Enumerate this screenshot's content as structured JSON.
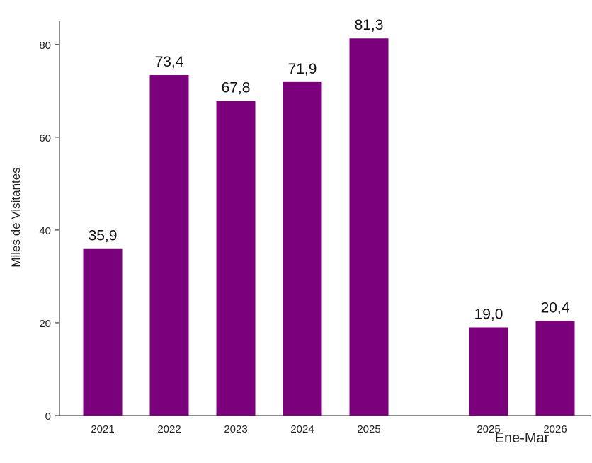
{
  "chart_data": {
    "type": "bar",
    "ylabel": "Miles de Visitantes",
    "ylim": [
      0,
      85
    ],
    "yticks": [
      0,
      20,
      40,
      60,
      80
    ],
    "grid": false,
    "bar_color": "#7b007b",
    "categories": [
      "2021",
      "2022",
      "2023",
      "2024",
      "2025",
      "2025",
      "2026"
    ],
    "values": [
      35.9,
      73.4,
      67.8,
      71.9,
      81.3,
      19.0,
      20.4
    ],
    "value_labels": [
      "35,9",
      "73,4",
      "67,8",
      "71,9",
      "81,3",
      "19,0",
      "20,4"
    ],
    "group_label": "Ene-Mar"
  }
}
